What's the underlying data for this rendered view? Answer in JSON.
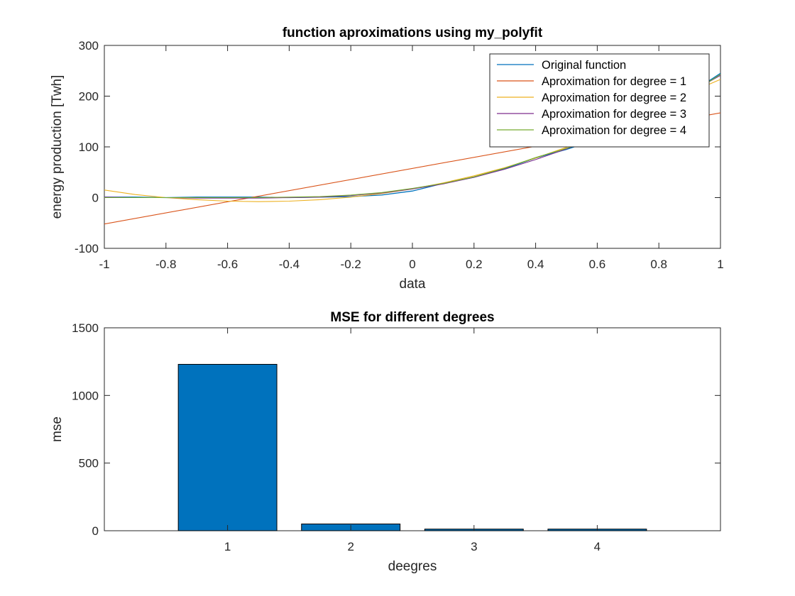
{
  "chart_data": [
    {
      "type": "line",
      "title": "function aproximations using my_polyfit",
      "xlabel": "data",
      "ylabel": "energy production [Twh]",
      "xlim": [
        -1,
        1
      ],
      "ylim": [
        -100,
        300
      ],
      "xticks": [
        -1,
        -0.8,
        -0.6,
        -0.4,
        -0.2,
        0,
        0.2,
        0.4,
        0.6,
        0.8,
        1
      ],
      "xtick_labels": [
        "-1",
        "-0.8",
        "-0.6",
        "-0.4",
        "-0.2",
        "0",
        "0.2",
        "0.4",
        "0.6",
        "0.8",
        "1"
      ],
      "yticks": [
        -100,
        0,
        100,
        200,
        300
      ],
      "ytick_labels": [
        "-100",
        "0",
        "100",
        "200",
        "300"
      ],
      "grid": false,
      "legend_position": "top-right",
      "series": [
        {
          "name": "Original function",
          "color": "#0072BD",
          "x": [
            -1,
            -0.9,
            -0.8,
            -0.7,
            -0.6,
            -0.5,
            -0.4,
            -0.3,
            -0.2,
            -0.1,
            0,
            0.1,
            0.2,
            0.3,
            0.4,
            0.5,
            0.6,
            0.7,
            0.8,
            0.9,
            1
          ],
          "y": [
            1,
            1,
            0,
            1,
            1,
            1,
            0,
            1,
            2,
            5,
            13,
            28,
            40,
            57,
            78,
            95,
            115,
            140,
            170,
            205,
            245
          ]
        },
        {
          "name": "Aproximation for degree = 1",
          "color": "#D95319",
          "x": [
            -1,
            1
          ],
          "y": [
            -52,
            167
          ]
        },
        {
          "name": "Aproximation for degree = 2",
          "color": "#EDB120",
          "x": [
            -1,
            -0.9,
            -0.8,
            -0.7,
            -0.6,
            -0.5,
            -0.4,
            -0.3,
            -0.2,
            -0.1,
            0,
            0.1,
            0.2,
            0.3,
            0.4,
            0.5,
            0.6,
            0.7,
            0.8,
            0.9,
            1
          ],
          "y": [
            15,
            6,
            0,
            -4,
            -7,
            -8,
            -7,
            -4,
            1,
            8,
            17,
            29,
            43,
            59,
            78,
            99,
            123,
            149,
            177,
            207,
            233
          ]
        },
        {
          "name": "Aproximation for degree = 3",
          "color": "#7E2F8E",
          "x": [
            -1,
            -0.9,
            -0.8,
            -0.7,
            -0.6,
            -0.5,
            -0.4,
            -0.3,
            -0.2,
            -0.1,
            0,
            0.1,
            0.2,
            0.3,
            0.4,
            0.5,
            0.6,
            0.7,
            0.8,
            0.9,
            1
          ],
          "y": [
            1,
            0,
            0,
            -1,
            -1,
            -1,
            0,
            1,
            4,
            9,
            17,
            27,
            40,
            56,
            75,
            96,
            120,
            146,
            175,
            207,
            241
          ]
        },
        {
          "name": "Aproximation for degree = 4",
          "color": "#77AC30",
          "x": [
            -1,
            -0.9,
            -0.8,
            -0.7,
            -0.6,
            -0.5,
            -0.4,
            -0.3,
            -0.2,
            -0.1,
            0,
            0.1,
            0.2,
            0.3,
            0.4,
            0.5,
            0.6,
            0.7,
            0.8,
            0.9,
            1
          ],
          "y": [
            0,
            0,
            0,
            0,
            0,
            0,
            1,
            2,
            5,
            10,
            18,
            28,
            41,
            58,
            79,
            97,
            116,
            141,
            170,
            204,
            243
          ]
        }
      ]
    },
    {
      "type": "bar",
      "title": "MSE for different degrees",
      "xlabel": "deegres",
      "ylabel": "mse",
      "xlim": [
        0,
        5
      ],
      "ylim": [
        0,
        1500
      ],
      "categories": [
        "1",
        "2",
        "3",
        "4"
      ],
      "values": [
        1230,
        50,
        12,
        12
      ],
      "yticks": [
        0,
        500,
        1000,
        1500
      ],
      "ytick_labels": [
        "0",
        "500",
        "1000",
        "1500"
      ],
      "bar_color": "#0072BD",
      "grid": false
    }
  ]
}
